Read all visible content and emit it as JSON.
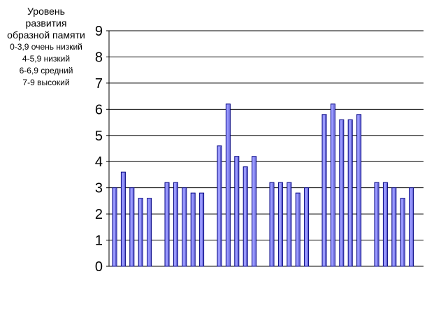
{
  "chart_data": {
    "type": "bar",
    "ylabel_lines": [
      "Уровень",
      "развития",
      "образной памяти"
    ],
    "scale_notes": [
      "0-3,9 очень низкий",
      "4-5,9 низкий",
      "6-6,9 средний",
      "7-9 высокий"
    ],
    "ylim": [
      0,
      9
    ],
    "yticks": [
      "0",
      "1",
      "2",
      "3",
      "4",
      "5",
      "6",
      "7",
      "8",
      "9"
    ],
    "grid": true,
    "groups": [
      {
        "values": [
          3.0,
          3.6,
          3.0,
          2.6,
          2.6
        ]
      },
      {
        "values": [
          3.2,
          3.2,
          3.0,
          2.8,
          2.8
        ]
      },
      {
        "values": [
          4.6,
          6.2,
          4.2,
          3.8,
          4.2
        ]
      },
      {
        "values": [
          3.2,
          3.2,
          3.2,
          2.8,
          3.0
        ]
      },
      {
        "values": [
          5.8,
          6.2,
          5.6,
          5.6,
          5.8
        ]
      },
      {
        "values": [
          3.2,
          3.2,
          3.0,
          2.6,
          3.0
        ]
      }
    ],
    "colors": {
      "bar_fill": "#9999ff",
      "bar_stroke": "#000080",
      "grid": "#000000"
    }
  }
}
